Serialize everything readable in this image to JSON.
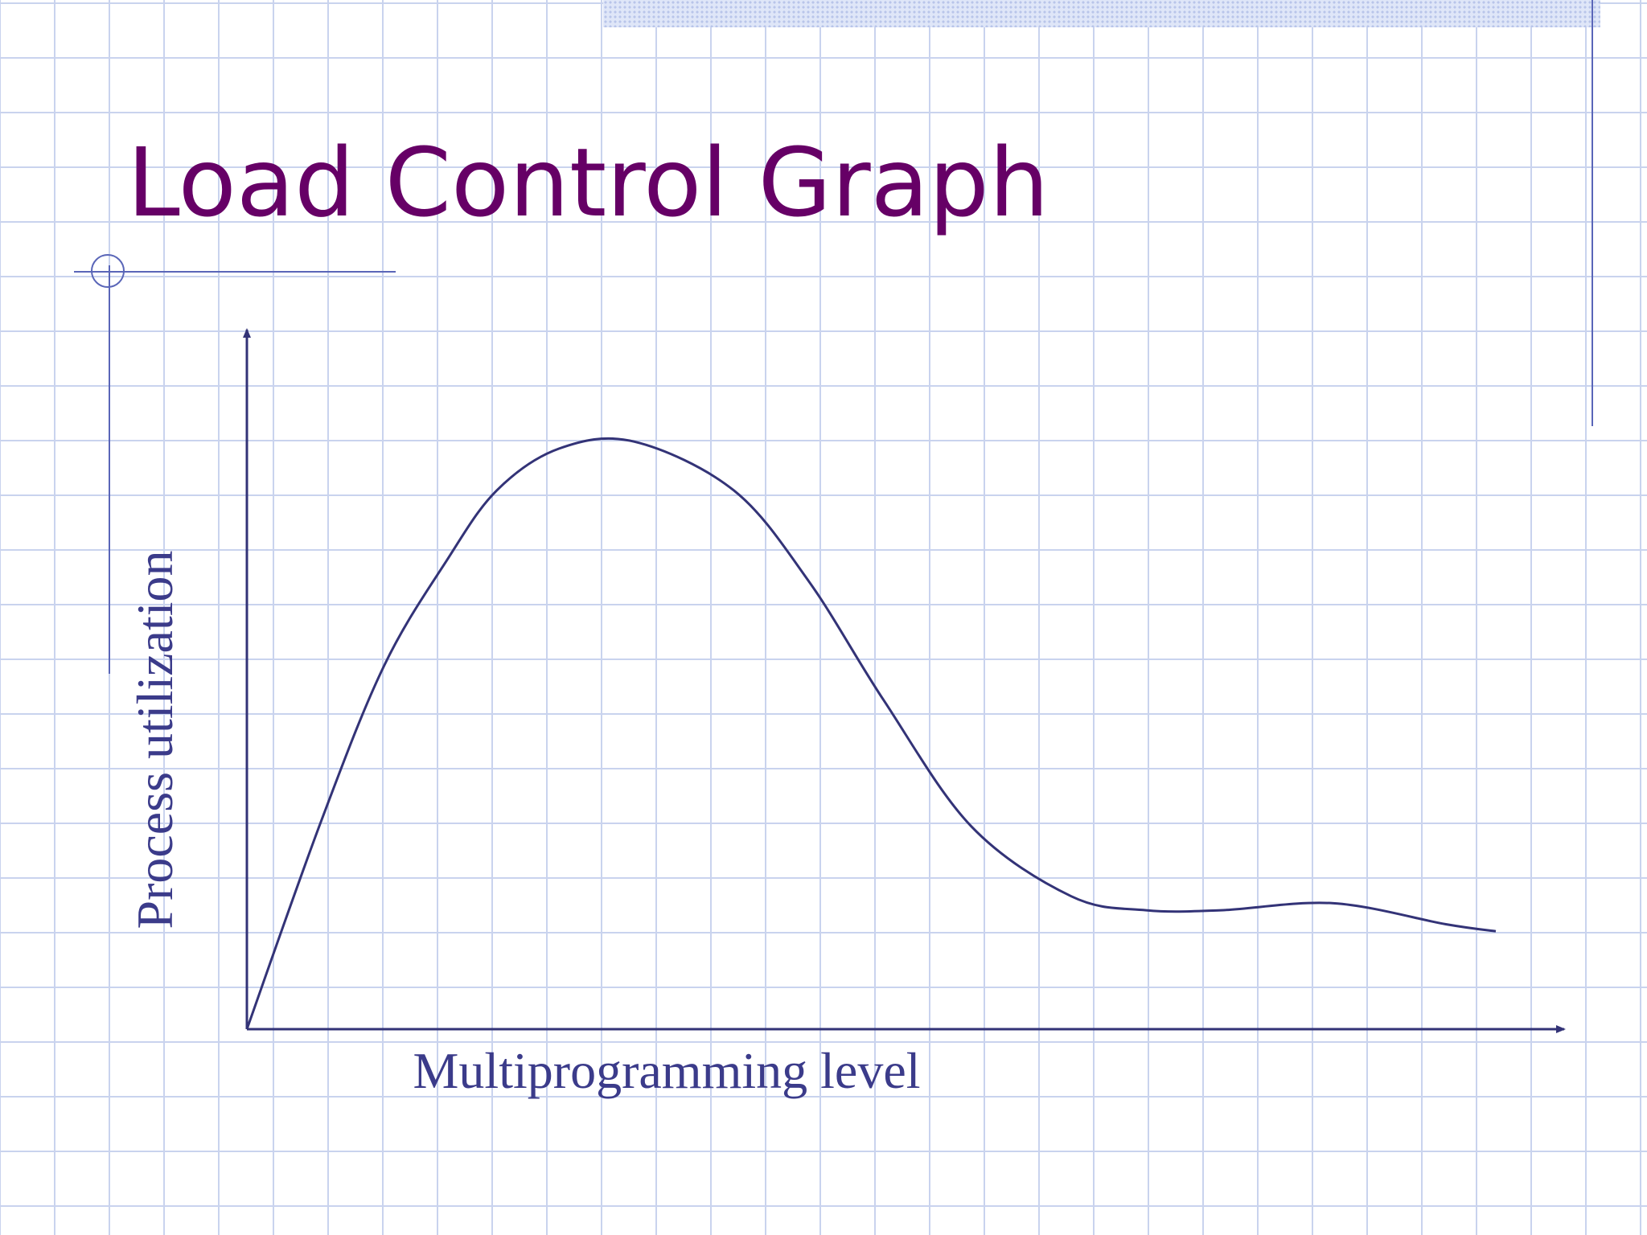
{
  "slide": {
    "title": "Load Control Graph"
  },
  "colors": {
    "title": "#660066",
    "axis": "#333377",
    "curve": "#333377",
    "label": "#3b3b8a",
    "grid": "#c9d3ee",
    "accent_rule": "#5a66b8"
  },
  "chart_data": {
    "type": "line",
    "title": "Load Control Graph",
    "xlabel": "Multiprogramming level",
    "ylabel": "Process utilization",
    "xlim": [
      0,
      100
    ],
    "ylim": [
      0,
      100
    ],
    "grid": true,
    "legend": "none",
    "ticks": "none",
    "series": [
      {
        "x": [
          0,
          6,
          11,
          16,
          20,
          25,
          31,
          39,
          45,
          51,
          58,
          66,
          72,
          78,
          87,
          96,
          100
        ],
        "values": [
          0,
          30,
          52,
          67,
          77,
          83,
          84,
          77,
          64,
          47,
          29,
          19,
          17,
          17,
          18,
          15,
          14
        ]
      }
    ]
  }
}
